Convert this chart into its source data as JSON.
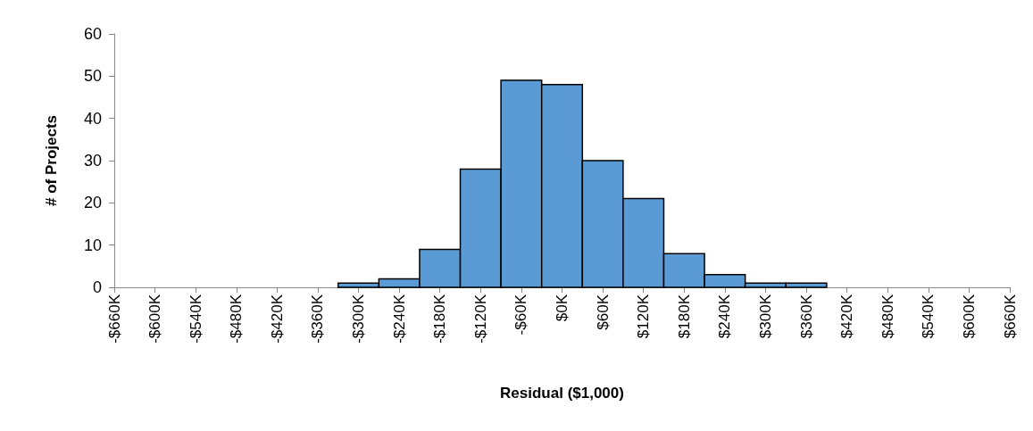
{
  "chart_data": {
    "type": "histogram",
    "xlabel": "Residual ($1,000)",
    "ylabel": "# of Projects",
    "bins": [
      -330,
      -270,
      -210,
      -150,
      -90,
      -30,
      30,
      90,
      150,
      210,
      270,
      330,
      390
    ],
    "values": [
      1,
      2,
      9,
      28,
      49,
      48,
      30,
      21,
      8,
      3,
      1,
      1
    ],
    "color": "#5b9bd5",
    "xlim": [
      -660,
      660
    ],
    "xticks": [
      {
        "value": -660,
        "label": "-$660K"
      },
      {
        "value": -600,
        "label": "-$600K"
      },
      {
        "value": -540,
        "label": "-$540K"
      },
      {
        "value": -480,
        "label": "-$480K"
      },
      {
        "value": -420,
        "label": "-$420K"
      },
      {
        "value": -360,
        "label": "-$360K"
      },
      {
        "value": -300,
        "label": "-$300K"
      },
      {
        "value": -240,
        "label": "-$240K"
      },
      {
        "value": -180,
        "label": "-$180K"
      },
      {
        "value": -120,
        "label": "-$120K"
      },
      {
        "value": -60,
        "label": "-$60K"
      },
      {
        "value": 0,
        "label": "$0K"
      },
      {
        "value": 60,
        "label": "$60K"
      },
      {
        "value": 120,
        "label": "$120K"
      },
      {
        "value": 180,
        "label": "$180K"
      },
      {
        "value": 240,
        "label": "$240K"
      },
      {
        "value": 300,
        "label": "$300K"
      },
      {
        "value": 360,
        "label": "$360K"
      },
      {
        "value": 420,
        "label": "$420K"
      },
      {
        "value": 480,
        "label": "$480K"
      },
      {
        "value": 540,
        "label": "$540K"
      },
      {
        "value": 600,
        "label": "$600K"
      },
      {
        "value": 660,
        "label": "$660K"
      }
    ],
    "ylim": [
      0,
      60
    ],
    "yticks": [
      0,
      10,
      20,
      30,
      40,
      50,
      60
    ]
  }
}
